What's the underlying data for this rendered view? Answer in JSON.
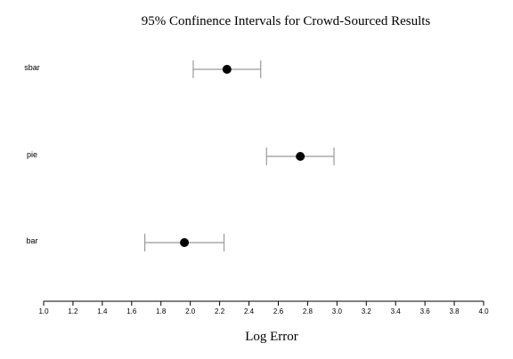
{
  "chart_data": {
    "type": "scatter",
    "title": "95% Confinence Intervals for Crowd-Sourced Results",
    "xlabel": "Log Error",
    "ylabel": "",
    "xlim": [
      1.0,
      4.0
    ],
    "x_ticks": [
      "1.0",
      "1.2",
      "1.4",
      "1.6",
      "1.8",
      "2.0",
      "2.2",
      "2.4",
      "2.6",
      "2.8",
      "3.0",
      "3.2",
      "3.4",
      "3.6",
      "3.8",
      "4.0"
    ],
    "categories": [
      "sbar",
      "pie",
      "bar"
    ],
    "series": [
      {
        "points": [
          {
            "category": "sbar",
            "mean": 2.25,
            "lower": 2.02,
            "upper": 2.48
          },
          {
            "category": "pie",
            "mean": 2.75,
            "lower": 2.52,
            "upper": 2.98
          },
          {
            "category": "bar",
            "mean": 1.96,
            "lower": 1.69,
            "upper": 2.23
          }
        ]
      }
    ],
    "grid": false,
    "colors": {
      "point": "#000000",
      "interval": "#999999",
      "axis": "#000000"
    }
  }
}
